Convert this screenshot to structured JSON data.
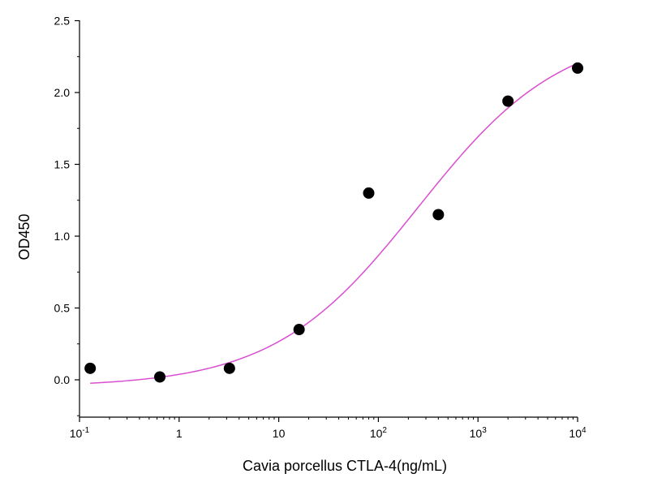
{
  "chart_data": {
    "type": "scatter",
    "title": "",
    "xlabel": "Cavia porcellus  CTLA-4(ng/mL)",
    "ylabel": "OD450",
    "x_scale": "log",
    "xlim": [
      0.1,
      10000
    ],
    "ylim": [
      -0.25,
      2.5
    ],
    "x_ticks": [
      {
        "value": 0.1,
        "label": "10",
        "sup": "-1"
      },
      {
        "value": 1,
        "label": "1",
        "sup": ""
      },
      {
        "value": 10,
        "label": "10",
        "sup": ""
      },
      {
        "value": 100,
        "label": "10",
        "sup": "2"
      },
      {
        "value": 1000,
        "label": "10",
        "sup": "3"
      },
      {
        "value": 10000,
        "label": "10",
        "sup": "4"
      }
    ],
    "y_ticks": [
      {
        "value": 0.0,
        "label": "0.0"
      },
      {
        "value": 0.5,
        "label": "0.5"
      },
      {
        "value": 1.0,
        "label": "1.0"
      },
      {
        "value": 1.5,
        "label": "1.5"
      },
      {
        "value": 2.0,
        "label": "2.0"
      },
      {
        "value": 2.5,
        "label": "2.5"
      }
    ],
    "grid": false,
    "legend": "none",
    "points": [
      {
        "x": 0.128,
        "y": 0.08
      },
      {
        "x": 0.64,
        "y": 0.02
      },
      {
        "x": 3.2,
        "y": 0.08
      },
      {
        "x": 16,
        "y": 0.35
      },
      {
        "x": 80,
        "y": 1.3
      },
      {
        "x": 400,
        "y": 1.15
      },
      {
        "x": 2000,
        "y": 1.94
      },
      {
        "x": 10000,
        "y": 2.17
      }
    ],
    "fit_curve": {
      "model": "4PL",
      "bottom": -0.05,
      "top": 2.45,
      "ec50": 250,
      "hill": 0.6,
      "x_range": [
        0.128,
        10000
      ]
    },
    "colors": {
      "points": "#000000",
      "curve": "#d94fd0",
      "axis": "#000000"
    }
  }
}
